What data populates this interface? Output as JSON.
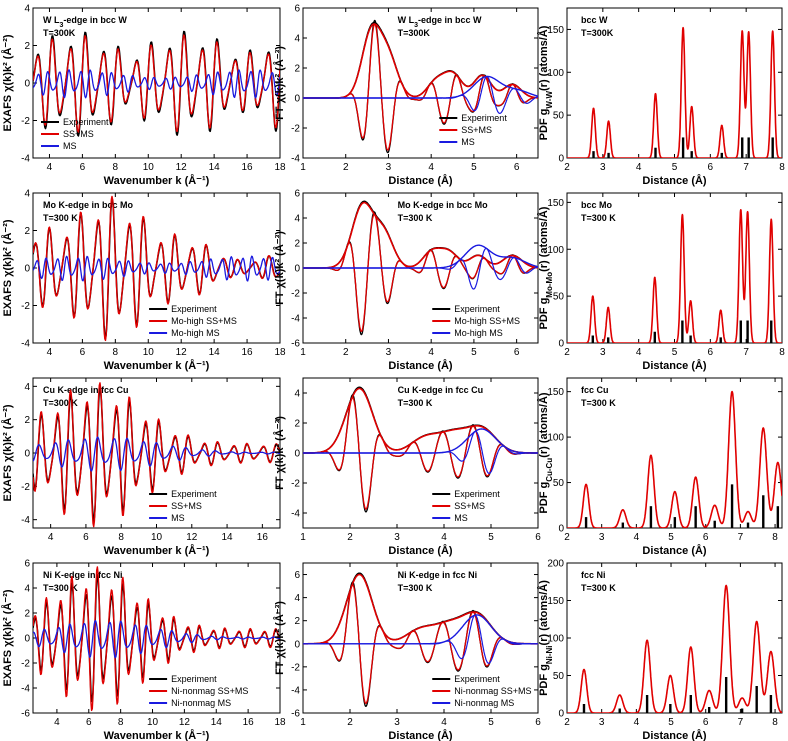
{
  "colors": {
    "experiment": "#000000",
    "ssms": "#e00000",
    "ms": "#1a1adf",
    "bars": "#000000"
  },
  "chart_data": [
    {
      "id": "p1",
      "type": "line",
      "row": 0,
      "col": 0,
      "kind": "exafs",
      "title": "W L3-edge in bcc W",
      "temp": "T=300K",
      "xlabel": "Wavenumber k (Å⁻¹)",
      "ylabel": "EXAFS χ(k)k² (Å⁻²)",
      "xlim": [
        3,
        18
      ],
      "ylim": [
        -4,
        4
      ],
      "xticks": [
        4,
        6,
        8,
        10,
        12,
        14,
        16,
        18
      ],
      "yticks": [
        -4,
        -2,
        0,
        2,
        4
      ],
      "legend": [
        "Experiment",
        "SS+MS",
        "MS"
      ],
      "series": [
        {
          "name": "Experiment",
          "amp": 2.9,
          "freq": 1.0,
          "phase": 0.2,
          "env": "multi"
        },
        {
          "name": "SS+MS",
          "amp": 2.7,
          "freq": 1.0,
          "phase": 0.25,
          "env": "multi"
        },
        {
          "name": "MS",
          "amp": 0.8,
          "freq": 1.55,
          "phase": 1.0,
          "env": "flat"
        }
      ]
    },
    {
      "id": "p2",
      "type": "line",
      "row": 0,
      "col": 1,
      "kind": "ft",
      "title": "W L3-edge in bcc W",
      "temp": "T=300K",
      "xlabel": "Distance (Å)",
      "ylabel": "FT χ(k)k² (Å⁻³)",
      "xlim": [
        1,
        6.5
      ],
      "ylim": [
        -4,
        6
      ],
      "xticks": [
        1,
        2,
        3,
        4,
        5,
        6
      ],
      "yticks": [
        -4,
        -2,
        0,
        2,
        4,
        6
      ],
      "legend": [
        "Experiment",
        "SS+MS",
        "MS"
      ],
      "peaks": [
        [
          2.6,
          4.3,
          0.22
        ],
        [
          3.0,
          2.6,
          0.22
        ],
        [
          4.1,
          1.0,
          0.2
        ],
        [
          4.5,
          1.6,
          0.22
        ],
        [
          5.2,
          1.5,
          0.2
        ],
        [
          5.9,
          0.9,
          0.2
        ]
      ],
      "mspeaks": [
        [
          5.3,
          1.4,
          0.3
        ],
        [
          6.0,
          0.5,
          0.3
        ]
      ]
    },
    {
      "id": "p3",
      "type": "line",
      "row": 0,
      "col": 2,
      "kind": "pdf",
      "title": "bcc W",
      "temp": "T=300K",
      "xlabel": "Distance (Å)",
      "ylabel": "PDF g_W-W(r) (atoms/Å)",
      "xlim": [
        2,
        8
      ],
      "ylim": [
        0,
        175
      ],
      "xticks": [
        2,
        3,
        4,
        5,
        6,
        7,
        8
      ],
      "yticks": [
        0,
        50,
        100,
        150
      ],
      "peaks": [
        [
          2.74,
          58,
          0.05
        ],
        [
          3.16,
          43,
          0.05
        ],
        [
          4.47,
          75,
          0.05
        ],
        [
          5.24,
          152,
          0.05
        ],
        [
          5.48,
          60,
          0.05
        ],
        [
          6.32,
          38,
          0.05
        ],
        [
          6.89,
          148,
          0.05
        ],
        [
          7.07,
          147,
          0.05
        ],
        [
          7.74,
          148,
          0.05
        ]
      ],
      "bars": [
        [
          2.74,
          8
        ],
        [
          3.16,
          6
        ],
        [
          4.47,
          12
        ],
        [
          5.24,
          24
        ],
        [
          5.48,
          8
        ],
        [
          6.32,
          6
        ],
        [
          6.89,
          24
        ],
        [
          7.07,
          24
        ],
        [
          7.74,
          24
        ]
      ]
    },
    {
      "id": "p4",
      "type": "line",
      "row": 1,
      "col": 0,
      "kind": "exafs",
      "title": "Mo K-edge in bcc Mo",
      "temp": "T=300 K",
      "xlabel": "Wavenumber k (Å⁻¹)",
      "ylabel": "EXAFS χ(k)k² (Å⁻²)",
      "xlim": [
        3,
        18
      ],
      "ylim": [
        -4,
        4
      ],
      "xticks": [
        4,
        6,
        8,
        10,
        12,
        14,
        16,
        18
      ],
      "yticks": [
        -4,
        -2,
        0,
        2,
        4
      ],
      "legend": [
        "Experiment",
        "Mo-high SS+MS",
        "Mo-high MS"
      ],
      "series": [
        {
          "name": "Experiment",
          "amp": 3.1,
          "freq": 1.05,
          "phase": 0.1,
          "env": "early"
        },
        {
          "name": "Mo-high SS+MS",
          "amp": 3.2,
          "freq": 1.05,
          "phase": 0.15,
          "env": "early"
        },
        {
          "name": "Mo-high MS",
          "amp": 0.7,
          "freq": 1.6,
          "phase": 0.8,
          "env": "flat"
        }
      ]
    },
    {
      "id": "p5",
      "type": "line",
      "row": 1,
      "col": 1,
      "kind": "ft",
      "title": "Mo K-edge in bcc Mo",
      "temp": "T=300 K",
      "xlabel": "Distance (Å)",
      "ylabel": "FT χ(k)k² (Å⁻³)",
      "xlim": [
        1,
        6.5
      ],
      "ylim": [
        -6,
        6
      ],
      "xticks": [
        1,
        2,
        3,
        4,
        5,
        6
      ],
      "yticks": [
        -6,
        -4,
        -2,
        0,
        2,
        4,
        6
      ],
      "legend": [
        "Experiment",
        "Mo-high SS+MS",
        "Mo-high MS"
      ],
      "peaks": [
        [
          2.4,
          5.0,
          0.25
        ],
        [
          2.9,
          2.6,
          0.22
        ],
        [
          4.0,
          1.2,
          0.2
        ],
        [
          4.4,
          1.3,
          0.22
        ],
        [
          5.1,
          1.0,
          0.2
        ],
        [
          5.9,
          1.0,
          0.22
        ]
      ],
      "mspeaks": [
        [
          5.1,
          1.8,
          0.3
        ],
        [
          5.9,
          0.8,
          0.3
        ]
      ]
    },
    {
      "id": "p6",
      "type": "line",
      "row": 1,
      "col": 2,
      "kind": "pdf",
      "title": "bcc Mo",
      "temp": "T=300 K",
      "xlabel": "Distance (Å)",
      "ylabel": "PDF g_Mo-Mo(r) (atoms/Å)",
      "xlim": [
        2,
        8
      ],
      "ylim": [
        0,
        160
      ],
      "xticks": [
        2,
        3,
        4,
        5,
        6,
        7,
        8
      ],
      "yticks": [
        0,
        50,
        100,
        150
      ],
      "peaks": [
        [
          2.72,
          50,
          0.05
        ],
        [
          3.15,
          38,
          0.05
        ],
        [
          4.45,
          70,
          0.05
        ],
        [
          5.22,
          137,
          0.05
        ],
        [
          5.45,
          45,
          0.05
        ],
        [
          6.29,
          35,
          0.05
        ],
        [
          6.85,
          142,
          0.05
        ],
        [
          7.04,
          140,
          0.05
        ],
        [
          7.7,
          132,
          0.05
        ]
      ],
      "bars": [
        [
          2.72,
          8
        ],
        [
          3.15,
          6
        ],
        [
          4.45,
          12
        ],
        [
          5.22,
          24
        ],
        [
          5.45,
          8
        ],
        [
          6.29,
          6
        ],
        [
          6.85,
          24
        ],
        [
          7.04,
          24
        ],
        [
          7.7,
          24
        ]
      ]
    },
    {
      "id": "p7",
      "type": "line",
      "row": 2,
      "col": 0,
      "kind": "exafs",
      "title": "Cu K-edge in fcc Cu",
      "temp": "T=300 K",
      "xlabel": "Wavenumber k (Å⁻¹)",
      "ylabel": "EXAFS χ(k)k² (Å⁻²)",
      "xlim": [
        3,
        17
      ],
      "ylim": [
        -4.5,
        4.5
      ],
      "xticks": [
        4,
        6,
        8,
        10,
        12,
        14,
        16
      ],
      "yticks": [
        -4,
        -2,
        0,
        2,
        4
      ],
      "legend": [
        "Experiment",
        "SS+MS",
        "MS"
      ],
      "series": [
        {
          "name": "Experiment",
          "amp": 3.6,
          "freq": 1.2,
          "phase": 0.3,
          "env": "decay"
        },
        {
          "name": "SS+MS",
          "amp": 3.9,
          "freq": 1.2,
          "phase": 0.35,
          "env": "decay"
        },
        {
          "name": "MS",
          "amp": 1.1,
          "freq": 1.2,
          "phase": 1.2,
          "env": "decay2"
        }
      ]
    },
    {
      "id": "p8",
      "type": "line",
      "row": 2,
      "col": 1,
      "kind": "ft",
      "title": "Cu K-edge in fcc Cu",
      "temp": "T=300 K",
      "xlabel": "Distance (Å)",
      "ylabel": "FT χ(k)k² (Å⁻³)",
      "xlim": [
        1,
        6
      ],
      "ylim": [
        -5,
        5
      ],
      "xticks": [
        1,
        2,
        3,
        4,
        5,
        6
      ],
      "yticks": [
        -4,
        -2,
        0,
        2,
        4
      ],
      "legend": [
        "Experiment",
        "SS+MS",
        "MS"
      ],
      "peaks": [
        [
          2.2,
          4.3,
          0.28
        ],
        [
          3.6,
          1.0,
          0.3
        ],
        [
          4.2,
          1.2,
          0.3
        ],
        [
          4.8,
          1.6,
          0.3
        ]
      ],
      "mspeaks": [
        [
          4.8,
          1.6,
          0.3
        ]
      ]
    },
    {
      "id": "p9",
      "type": "line",
      "row": 2,
      "col": 2,
      "kind": "pdf",
      "title": "fcc Cu",
      "temp": "T=300 K",
      "xlabel": "Distance (Å)",
      "ylabel": "PDF g_Cu-Cu(r) (atoms/Å)",
      "xlim": [
        2,
        8.2
      ],
      "ylim": [
        0,
        165
      ],
      "xticks": [
        2,
        3,
        4,
        5,
        6,
        7,
        8
      ],
      "yticks": [
        0,
        50,
        100,
        150
      ],
      "peaks": [
        [
          2.55,
          48,
          0.08
        ],
        [
          3.61,
          20,
          0.09
        ],
        [
          4.42,
          80,
          0.09
        ],
        [
          5.11,
          40,
          0.09
        ],
        [
          5.71,
          56,
          0.09
        ],
        [
          6.26,
          25,
          0.1
        ],
        [
          6.76,
          150,
          0.1
        ],
        [
          7.22,
          18,
          0.1
        ],
        [
          7.66,
          110,
          0.1
        ],
        [
          8.08,
          72,
          0.1
        ]
      ],
      "bars": [
        [
          2.55,
          12
        ],
        [
          3.61,
          6
        ],
        [
          4.42,
          24
        ],
        [
          5.11,
          12
        ],
        [
          5.71,
          24
        ],
        [
          6.26,
          8
        ],
        [
          6.76,
          48
        ],
        [
          7.22,
          6
        ],
        [
          7.66,
          36
        ],
        [
          8.08,
          24
        ]
      ]
    },
    {
      "id": "p10",
      "type": "line",
      "row": 3,
      "col": 0,
      "kind": "exafs",
      "title": "Ni K-edge in fcc Ni",
      "temp": "T=300 K",
      "xlabel": "Wavenumber k (Å⁻¹)",
      "ylabel": "EXAFS χ(k)k² (Å⁻²)",
      "xlim": [
        2.5,
        18
      ],
      "ylim": [
        -6,
        6
      ],
      "xticks": [
        4,
        6,
        8,
        10,
        12,
        14,
        16,
        18
      ],
      "yticks": [
        -6,
        -4,
        -2,
        0,
        2,
        4,
        6
      ],
      "legend": [
        "Experiment",
        "Ni-nonmag SS+MS",
        "Ni-nonmag MS"
      ],
      "series": [
        {
          "name": "Experiment",
          "amp": 4.6,
          "freq": 1.25,
          "phase": 0.2,
          "env": "decay"
        },
        {
          "name": "Ni-nonmag SS+MS",
          "amp": 5.2,
          "freq": 1.25,
          "phase": 0.25,
          "env": "decay"
        },
        {
          "name": "Ni-nonmag MS",
          "amp": 1.6,
          "freq": 1.25,
          "phase": 1.1,
          "env": "decay2"
        }
      ]
    },
    {
      "id": "p11",
      "type": "line",
      "row": 3,
      "col": 1,
      "kind": "ft",
      "title": "Ni K-edge in fcc Ni",
      "temp": "T=300 K",
      "xlabel": "Distance (Å)",
      "ylabel": "FT χ(k)k² (Å⁻³)",
      "xlim": [
        1,
        6
      ],
      "ylim": [
        -6,
        7
      ],
      "xticks": [
        1,
        2,
        3,
        4,
        5,
        6
      ],
      "yticks": [
        -6,
        -4,
        -2,
        0,
        2,
        4,
        6
      ],
      "legend": [
        "Experiment",
        "Ni-nonmag SS+MS",
        "Ni-nonmag MS"
      ],
      "peaks": [
        [
          2.2,
          6.0,
          0.27
        ],
        [
          3.5,
          1.2,
          0.3
        ],
        [
          4.1,
          1.5,
          0.3
        ],
        [
          4.7,
          2.5,
          0.3
        ]
      ],
      "mspeaks": [
        [
          4.7,
          2.5,
          0.3
        ]
      ]
    },
    {
      "id": "p12",
      "type": "line",
      "row": 3,
      "col": 2,
      "kind": "pdf",
      "title": "fcc Ni",
      "temp": "T=300 K",
      "xlabel": "Distance (Å)",
      "ylabel": "PDF g_Ni-Ni(r) (atoms/Å)",
      "xlim": [
        2,
        8.2
      ],
      "ylim": [
        0,
        200
      ],
      "xticks": [
        2,
        3,
        4,
        5,
        6,
        7,
        8
      ],
      "yticks": [
        0,
        50,
        100,
        150,
        200
      ],
      "peaks": [
        [
          2.49,
          58,
          0.08
        ],
        [
          3.52,
          24,
          0.09
        ],
        [
          4.31,
          97,
          0.09
        ],
        [
          4.98,
          50,
          0.09
        ],
        [
          5.57,
          88,
          0.09
        ],
        [
          6.1,
          30,
          0.1
        ],
        [
          6.59,
          170,
          0.1
        ],
        [
          7.05,
          20,
          0.1
        ],
        [
          7.47,
          122,
          0.1
        ],
        [
          7.88,
          82,
          0.1
        ]
      ],
      "bars": [
        [
          2.49,
          12
        ],
        [
          3.52,
          6
        ],
        [
          4.31,
          24
        ],
        [
          4.98,
          12
        ],
        [
          5.57,
          24
        ],
        [
          6.1,
          8
        ],
        [
          6.59,
          48
        ],
        [
          7.05,
          6
        ],
        [
          7.47,
          36
        ],
        [
          7.88,
          24
        ]
      ]
    }
  ]
}
